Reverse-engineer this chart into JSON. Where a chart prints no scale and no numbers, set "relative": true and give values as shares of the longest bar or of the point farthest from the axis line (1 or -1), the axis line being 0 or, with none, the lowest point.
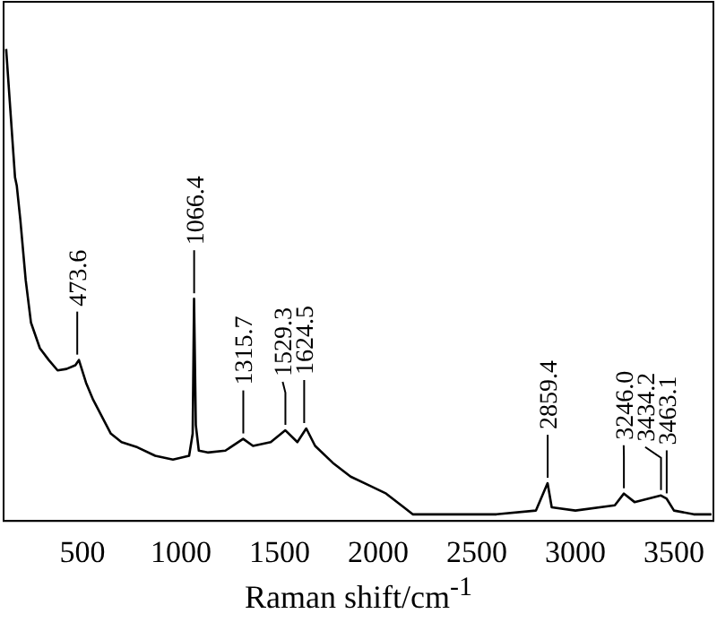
{
  "chart_data": {
    "type": "line",
    "xlabel": "Raman shift/cm$^{-1}$",
    "relative": true,
    "tick_labels": "x",
    "grid": false,
    "legend": false,
    "marker": "none",
    "line_style": "solid",
    "xlim": [
      100,
      3700
    ],
    "xticks": [
      500,
      1000,
      1500,
      2000,
      2500,
      3000,
      3500
    ],
    "series": [
      {
        "color": "#000000",
        "x": [
          113,
          131,
          158,
          167,
          185,
          212,
          239,
          284,
          329,
          374,
          419,
          464,
          482,
          518,
          554,
          599,
          644,
          698,
          779,
          869,
          959,
          1041,
          1059,
          1066,
          1075,
          1090,
          1135,
          1225,
          1315,
          1365,
          1455,
          1529,
          1590,
          1635,
          1680,
          1770,
          1860,
          1950,
          2040,
          2130,
          2175,
          2300,
          2600,
          2800,
          2859,
          2880,
          3000,
          3200,
          3246,
          3300,
          3434,
          3463,
          3500,
          3600,
          3690
        ],
        "values": [
          1,
          0.891,
          0.728,
          0.71,
          0.638,
          0.511,
          0.42,
          0.366,
          0.341,
          0.319,
          0.322,
          0.33,
          0.341,
          0.293,
          0.257,
          0.221,
          0.185,
          0.167,
          0.156,
          0.138,
          0.13,
          0.138,
          0.185,
          0.471,
          0.203,
          0.149,
          0.145,
          0.149,
          0.174,
          0.159,
          0.167,
          0.192,
          0.167,
          0.196,
          0.159,
          0.123,
          0.094,
          0.076,
          0.058,
          0.029,
          0.014,
          0.014,
          0.014,
          0.022,
          0.08,
          0.029,
          0.022,
          0.033,
          0.058,
          0.04,
          0.054,
          0.047,
          0.022,
          0.014,
          0.014
        ]
      }
    ],
    "annotations": [
      {
        "text": "473.6",
        "x": 473.6,
        "y": 0.341
      },
      {
        "text": "1066.4",
        "x": 1066.4,
        "y": 0.471
      },
      {
        "text": "1315.7",
        "x": 1315.7,
        "y": 0.174
      },
      {
        "text": "1529.3",
        "x": 1529.3,
        "y": 0.192
      },
      {
        "text": "1624.5",
        "x": 1624.5,
        "y": 0.196
      },
      {
        "text": "2859.4",
        "x": 2859.4,
        "y": 0.08
      },
      {
        "text": "3246.0",
        "x": 3246.0,
        "y": 0.058
      },
      {
        "text": "3434.2",
        "x": 3434.2,
        "y": 0.054
      },
      {
        "text": "3463.1",
        "x": 3463.1,
        "y": 0.047
      }
    ]
  }
}
